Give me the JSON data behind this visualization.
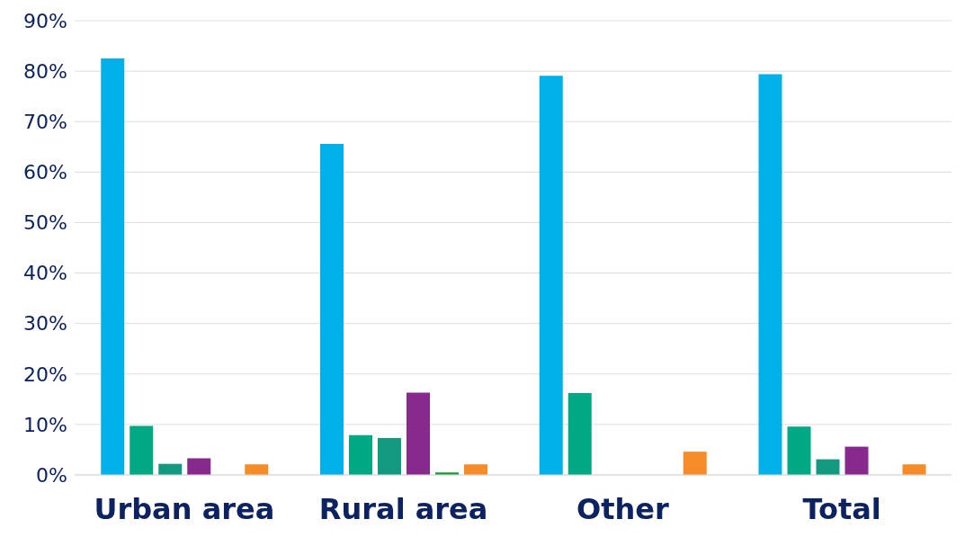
{
  "chart_data": {
    "type": "bar",
    "categories": [
      "Urban area",
      "Rural area",
      "Other",
      "Total"
    ],
    "series": [
      {
        "color": "#00b0e8",
        "values": [
          82.5,
          65.6,
          79.1,
          79.4
        ]
      },
      {
        "color": "#00a884",
        "values": [
          9.7,
          7.9,
          16.2,
          9.6
        ]
      },
      {
        "color": "#13997f",
        "values": [
          2.2,
          7.3,
          null,
          3.1
        ]
      },
      {
        "color": "#872a8d",
        "values": [
          3.3,
          16.3,
          null,
          5.6
        ]
      },
      {
        "color": "#1e9b3a",
        "values": [
          null,
          0.5,
          null,
          null
        ]
      },
      {
        "color": "#f68c28",
        "values": [
          2.1,
          2.1,
          4.6,
          2.1
        ]
      }
    ],
    "ylim": [
      0,
      90
    ],
    "yticks": [
      {
        "value": 0,
        "label": "0%"
      },
      {
        "value": 10,
        "label": "10%"
      },
      {
        "value": 20,
        "label": "20%"
      },
      {
        "value": 30,
        "label": "30%"
      },
      {
        "value": 40,
        "label": "40%"
      },
      {
        "value": 50,
        "label": "50%"
      },
      {
        "value": 60,
        "label": "60%"
      },
      {
        "value": 70,
        "label": "70%"
      },
      {
        "value": 80,
        "label": "80%"
      },
      {
        "value": 90,
        "label": "90%"
      }
    ],
    "grid": "y",
    "legend": false
  }
}
